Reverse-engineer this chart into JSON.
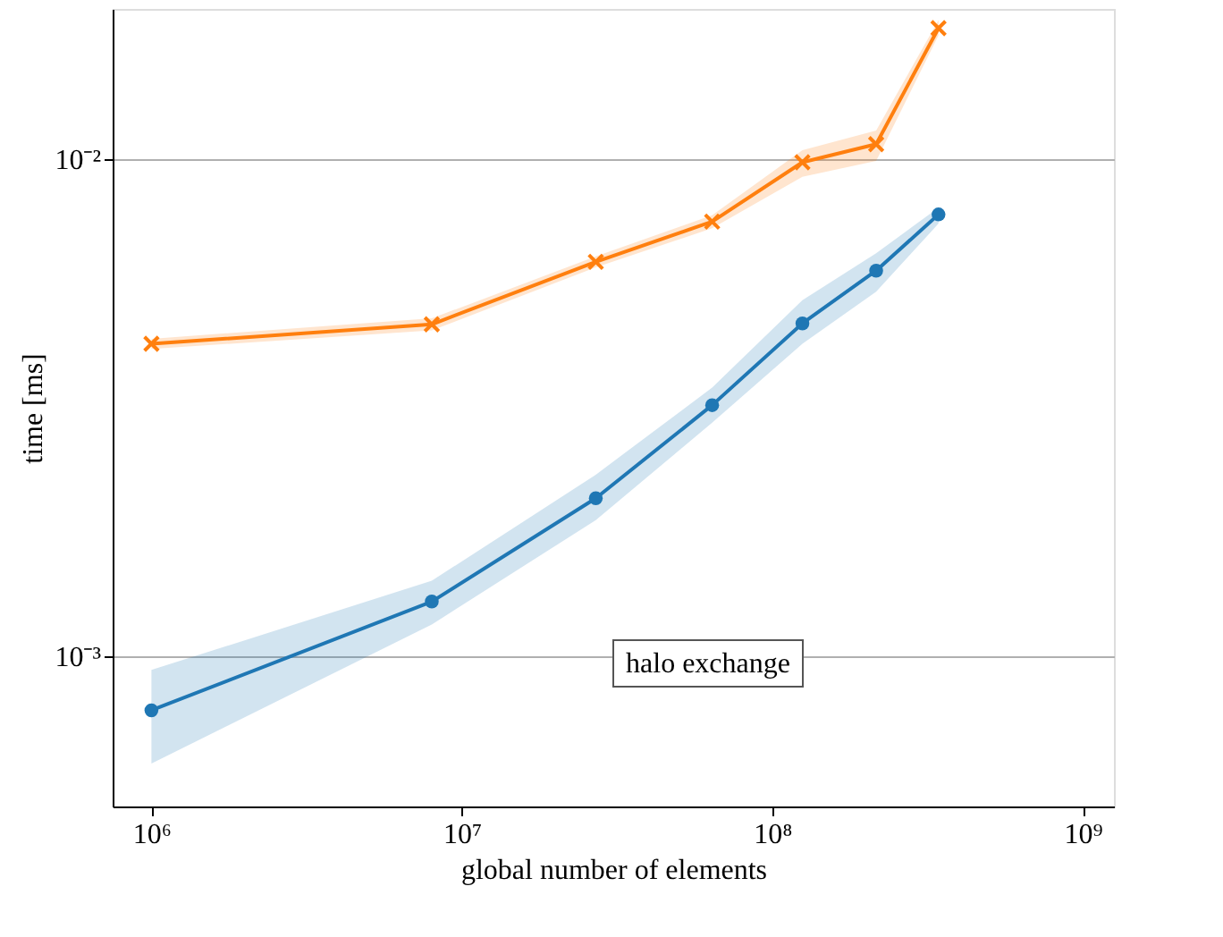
{
  "chart_data": {
    "type": "line",
    "xlabel": "global number of elements",
    "ylabel": "time [ms]",
    "log": "xy",
    "grid": "y",
    "x": [
      1000000,
      8000000,
      27000000,
      64000000,
      125000000,
      216000000,
      343000000
    ],
    "xlim": [
      750000,
      1260000000
    ],
    "ylim": [
      0.0005,
      0.02
    ],
    "xticks": [
      {
        "value": 1000000,
        "label": "10⁶"
      },
      {
        "value": 10000000,
        "label": "10⁷"
      },
      {
        "value": 100000000,
        "label": "10⁸"
      },
      {
        "value": 1000000000,
        "label": "10⁹"
      }
    ],
    "yticks": [
      {
        "value": 0.001,
        "label": "10⁻³"
      },
      {
        "value": 0.01,
        "label": "10⁻²"
      }
    ],
    "series": [
      {
        "color": "#1f77b4",
        "marker": "circle",
        "values": [
          0.00078,
          0.00129,
          0.00208,
          0.0032,
          0.00467,
          0.00596,
          0.00773
        ],
        "lower": [
          0.00061,
          0.00116,
          0.00188,
          0.00295,
          0.00425,
          0.00541,
          0.00741
        ],
        "upper": [
          0.00094,
          0.00142,
          0.00232,
          0.00347,
          0.0052,
          0.00646,
          0.00798
        ]
      },
      {
        "color": "#ff7f0e",
        "marker": "cross",
        "values": [
          0.00425,
          0.00465,
          0.00621,
          0.00748,
          0.00984,
          0.0107,
          0.0183
        ],
        "lower": [
          0.00415,
          0.00452,
          0.00605,
          0.00725,
          0.0092,
          0.0099,
          0.0177
        ],
        "upper": [
          0.00435,
          0.00478,
          0.00637,
          0.0077,
          0.0104,
          0.0114,
          0.019
        ]
      }
    ],
    "annotations": [
      "halo exchange"
    ]
  }
}
